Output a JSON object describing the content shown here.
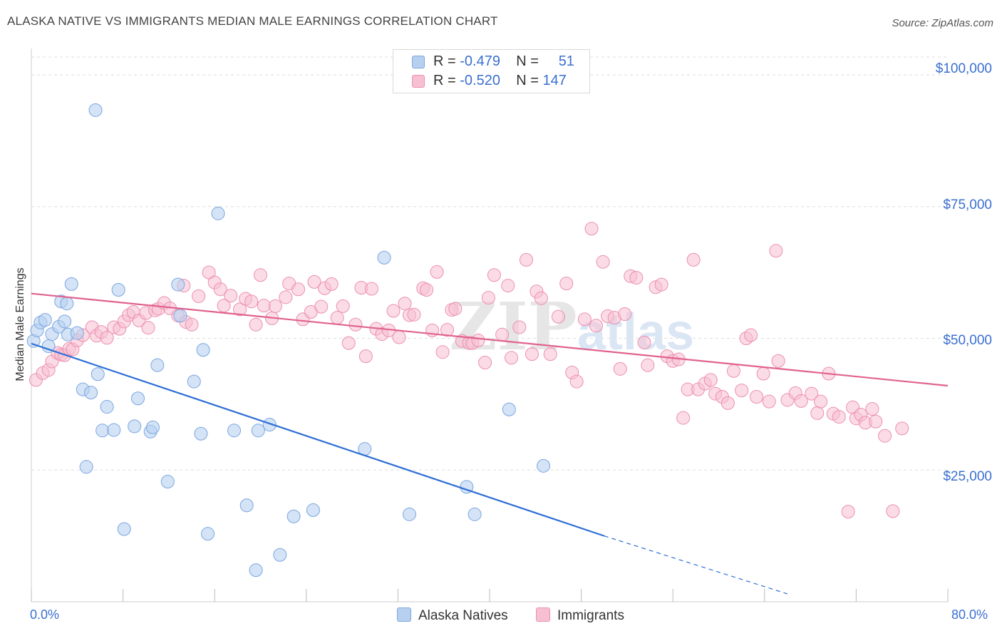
{
  "title": "ALASKA NATIVE VS IMMIGRANTS MEDIAN MALE EARNINGS CORRELATION CHART",
  "source": "Source: ZipAtlas.com",
  "colors": {
    "blue_fill": "#b8d0f0",
    "blue_stroke": "#7aa6e0",
    "blue_line": "#2f6fd6",
    "pink_fill": "#f7c0d2",
    "pink_stroke": "#ec8fae",
    "pink_line": "#e0628e",
    "grid": "#dddddd",
    "accent": "#3a6fd0"
  },
  "legend_top": {
    "rows": [
      {
        "r_label": "R =",
        "r_value": "-0.479",
        "n_label": "N =",
        "n_value": "51"
      },
      {
        "r_label": "R =",
        "r_value": "-0.520",
        "n_label": "N =",
        "n_value": "147"
      }
    ]
  },
  "chart_data": {
    "type": "scatter",
    "xlabel": "",
    "ylabel": "Median Male Earnings",
    "xlim": [
      0,
      80
    ],
    "ylim": [
      0,
      105000
    ],
    "x_tick_labels": [
      "0.0%",
      "80.0%"
    ],
    "y_tick_values": [
      25000,
      50000,
      75000,
      100000
    ],
    "y_tick_labels": [
      "$25,000",
      "$50,000",
      "$75,000",
      "$100,000"
    ],
    "grid": true,
    "legend_placement": "bottom-center",
    "series": [
      {
        "name": "Alaska Natives",
        "trend": {
          "x0": 0,
          "y0": 49000,
          "x_solid_end": 50,
          "y_solid_end": 12500,
          "x_dash_end": 66,
          "y_dash_end": 1500
        },
        "points": [
          [
            0.2,
            49500
          ],
          [
            0.5,
            51500
          ],
          [
            0.8,
            53000
          ],
          [
            1.2,
            53500
          ],
          [
            1.5,
            48500
          ],
          [
            1.8,
            50800
          ],
          [
            2.4,
            52200
          ],
          [
            2.6,
            57000
          ],
          [
            2.9,
            53200
          ],
          [
            3.1,
            56600
          ],
          [
            3.2,
            50700
          ],
          [
            3.5,
            60300
          ],
          [
            4.0,
            51000
          ],
          [
            4.5,
            40300
          ],
          [
            4.8,
            25600
          ],
          [
            5.2,
            39700
          ],
          [
            5.6,
            93300
          ],
          [
            5.8,
            43200
          ],
          [
            6.2,
            32500
          ],
          [
            6.6,
            37000
          ],
          [
            7.2,
            32600
          ],
          [
            7.6,
            59200
          ],
          [
            8.1,
            13800
          ],
          [
            9.0,
            33300
          ],
          [
            9.3,
            38600
          ],
          [
            10.4,
            32300
          ],
          [
            10.6,
            33100
          ],
          [
            11.0,
            44900
          ],
          [
            11.9,
            22800
          ],
          [
            12.8,
            60200
          ],
          [
            13.0,
            54300
          ],
          [
            14.2,
            41800
          ],
          [
            14.8,
            31900
          ],
          [
            15.0,
            47800
          ],
          [
            15.4,
            12900
          ],
          [
            16.3,
            73700
          ],
          [
            17.7,
            32500
          ],
          [
            18.8,
            18300
          ],
          [
            19.6,
            6000
          ],
          [
            19.8,
            32500
          ],
          [
            20.8,
            33600
          ],
          [
            21.7,
            8900
          ],
          [
            22.9,
            16200
          ],
          [
            24.6,
            17400
          ],
          [
            29.1,
            29000
          ],
          [
            30.8,
            65300
          ],
          [
            33.0,
            16600
          ],
          [
            38.0,
            21800
          ],
          [
            38.7,
            16600
          ],
          [
            41.7,
            36500
          ],
          [
            44.7,
            25800
          ]
        ]
      },
      {
        "name": "Immigrants",
        "trend": {
          "x0": 0,
          "y0": 58500,
          "x1": 80,
          "y1": 41000
        },
        "points": [
          [
            0.4,
            42100
          ],
          [
            1.0,
            43400
          ],
          [
            1.5,
            44000
          ],
          [
            1.8,
            45600
          ],
          [
            2.3,
            47200
          ],
          [
            2.6,
            46900
          ],
          [
            2.9,
            46800
          ],
          [
            3.3,
            48000
          ],
          [
            3.6,
            47900
          ],
          [
            4.0,
            49600
          ],
          [
            4.5,
            50600
          ],
          [
            5.3,
            52100
          ],
          [
            5.7,
            50500
          ],
          [
            6.1,
            51200
          ],
          [
            6.6,
            50100
          ],
          [
            7.2,
            52100
          ],
          [
            7.7,
            51800
          ],
          [
            8.1,
            53200
          ],
          [
            8.5,
            54400
          ],
          [
            8.9,
            55000
          ],
          [
            9.4,
            53400
          ],
          [
            10.0,
            54800
          ],
          [
            10.2,
            52000
          ],
          [
            10.8,
            55300
          ],
          [
            11.1,
            55600
          ],
          [
            11.6,
            56700
          ],
          [
            12.1,
            55700
          ],
          [
            12.8,
            54300
          ],
          [
            13.3,
            60000
          ],
          [
            13.5,
            53100
          ],
          [
            14.0,
            52600
          ],
          [
            14.6,
            58000
          ],
          [
            15.5,
            62500
          ],
          [
            16.0,
            60600
          ],
          [
            16.5,
            59300
          ],
          [
            16.8,
            56200
          ],
          [
            17.4,
            58100
          ],
          [
            18.2,
            55500
          ],
          [
            18.7,
            57500
          ],
          [
            19.2,
            57000
          ],
          [
            19.6,
            52600
          ],
          [
            20.0,
            62000
          ],
          [
            20.3,
            56200
          ],
          [
            21.0,
            53800
          ],
          [
            21.3,
            56100
          ],
          [
            22.2,
            57800
          ],
          [
            22.5,
            60400
          ],
          [
            23.3,
            59300
          ],
          [
            23.7,
            53600
          ],
          [
            24.4,
            55000
          ],
          [
            24.7,
            60700
          ],
          [
            25.3,
            56000
          ],
          [
            25.6,
            59500
          ],
          [
            26.2,
            60300
          ],
          [
            26.7,
            53900
          ],
          [
            27.2,
            56100
          ],
          [
            27.7,
            49100
          ],
          [
            28.3,
            52600
          ],
          [
            28.8,
            59600
          ],
          [
            29.2,
            46600
          ],
          [
            29.7,
            59400
          ],
          [
            30.1,
            51800
          ],
          [
            30.6,
            50800
          ],
          [
            31.2,
            51500
          ],
          [
            31.6,
            55200
          ],
          [
            32.1,
            50200
          ],
          [
            32.6,
            56600
          ],
          [
            33.0,
            54400
          ],
          [
            33.4,
            54500
          ],
          [
            34.2,
            59500
          ],
          [
            34.5,
            59200
          ],
          [
            35.0,
            51500
          ],
          [
            35.4,
            62600
          ],
          [
            35.9,
            47400
          ],
          [
            36.3,
            51600
          ],
          [
            36.7,
            55400
          ],
          [
            37.0,
            55600
          ],
          [
            37.6,
            49500
          ],
          [
            38.2,
            49100
          ],
          [
            38.5,
            49100
          ],
          [
            39.0,
            49600
          ],
          [
            39.6,
            45400
          ],
          [
            39.9,
            57700
          ],
          [
            40.4,
            62000
          ],
          [
            41.1,
            50700
          ],
          [
            41.6,
            60000
          ],
          [
            41.9,
            46300
          ],
          [
            42.6,
            52100
          ],
          [
            43.2,
            64900
          ],
          [
            43.7,
            47000
          ],
          [
            44.1,
            58900
          ],
          [
            44.5,
            57600
          ],
          [
            45.3,
            47000
          ],
          [
            46.0,
            54100
          ],
          [
            46.7,
            60400
          ],
          [
            47.2,
            43500
          ],
          [
            47.6,
            41800
          ],
          [
            48.3,
            53600
          ],
          [
            48.9,
            70800
          ],
          [
            49.3,
            52400
          ],
          [
            49.9,
            64500
          ],
          [
            50.3,
            54200
          ],
          [
            50.9,
            53900
          ],
          [
            51.4,
            44200
          ],
          [
            51.8,
            54600
          ],
          [
            52.3,
            61800
          ],
          [
            52.8,
            61500
          ],
          [
            53.5,
            49200
          ],
          [
            53.8,
            44900
          ],
          [
            54.5,
            59700
          ],
          [
            55.0,
            60200
          ],
          [
            55.5,
            46600
          ],
          [
            56.0,
            45700
          ],
          [
            56.5,
            46000
          ],
          [
            56.9,
            34900
          ],
          [
            57.3,
            40300
          ],
          [
            57.8,
            64900
          ],
          [
            58.2,
            40300
          ],
          [
            58.8,
            41400
          ],
          [
            59.3,
            42100
          ],
          [
            59.7,
            39500
          ],
          [
            60.3,
            38900
          ],
          [
            60.8,
            37700
          ],
          [
            61.3,
            43800
          ],
          [
            62.0,
            40100
          ],
          [
            62.4,
            50000
          ],
          [
            62.8,
            50600
          ],
          [
            63.3,
            38900
          ],
          [
            63.9,
            43300
          ],
          [
            64.4,
            38000
          ],
          [
            65.0,
            66600
          ],
          [
            65.2,
            45700
          ],
          [
            66.0,
            38300
          ],
          [
            66.7,
            39600
          ],
          [
            67.2,
            38100
          ],
          [
            68.1,
            39500
          ],
          [
            68.6,
            35800
          ],
          [
            68.9,
            38000
          ],
          [
            69.6,
            43300
          ],
          [
            70.0,
            35700
          ],
          [
            70.5,
            35100
          ],
          [
            71.3,
            17100
          ],
          [
            71.7,
            36900
          ],
          [
            72.0,
            34800
          ],
          [
            72.4,
            35500
          ],
          [
            72.8,
            34000
          ],
          [
            73.4,
            36600
          ],
          [
            73.7,
            34200
          ],
          [
            74.5,
            31500
          ],
          [
            75.2,
            17200
          ],
          [
            76.0,
            32900
          ]
        ]
      }
    ]
  }
}
